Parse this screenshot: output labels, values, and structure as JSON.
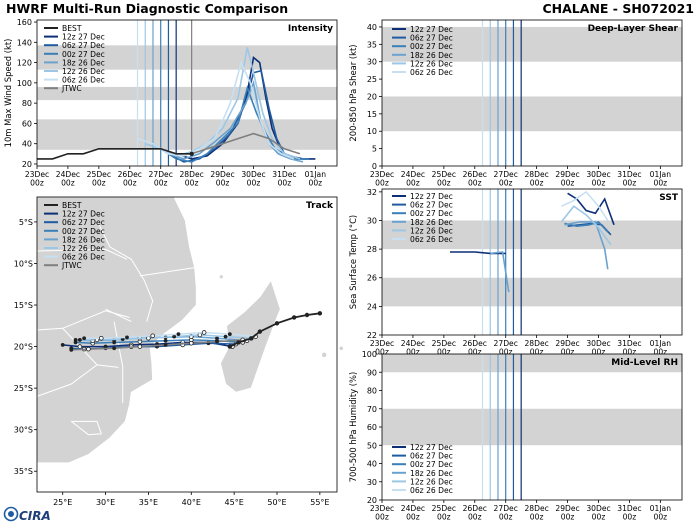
{
  "header": {
    "title_left": "HWRF Multi-Run Diagnostic Comparison",
    "title_right": "CHALANE - SH072021"
  },
  "footer": {
    "logo_text": "CIRA"
  },
  "colors": {
    "best": "#222222",
    "jtwc": "#808080",
    "band": "#d3d3d3",
    "runs": [
      "#0d2f78",
      "#1f5ba0",
      "#3a7fb7",
      "#6aa2cf",
      "#9cc7e6",
      "#c7e0f1"
    ]
  },
  "run_names": [
    "12z 27 Dec",
    "06z 27 Dec",
    "00z 27 Dec",
    "18z 26 Dec",
    "12z 26 Dec",
    "06z 26 Dec"
  ],
  "date_ticks": [
    "23Dec 00z",
    "24Dec 00z",
    "25Dec 00z",
    "26Dec 00z",
    "27Dec 00z",
    "28Dec 00z",
    "29Dec 00z",
    "30Dec 00z",
    "31Dec 00z",
    "01Jan 00z"
  ],
  "chart_data": [
    {
      "id": "intensity",
      "type": "line",
      "title": "Intensity",
      "ylabel": "10m Max Wind Speed (kt)",
      "ylim": [
        18,
        162
      ],
      "yticks": [
        20,
        40,
        60,
        80,
        100,
        120,
        140,
        160
      ],
      "bands": [
        [
          34,
          64
        ],
        [
          83,
          96
        ],
        [
          113,
          137
        ]
      ],
      "legend": [
        "BEST",
        "12z 27 Dec",
        "06z 27 Dec",
        "00z 27 Dec",
        "18z 26 Dec",
        "12z 26 Dec",
        "06z 26 Dec",
        "JTWC"
      ],
      "run_start_lines": [
        26.25,
        26.5,
        26.75,
        27.0,
        27.25,
        27.5
      ],
      "jtwc_line": 28.0,
      "best": {
        "x": [
          23.0,
          23.5,
          24.0,
          24.5,
          25.0,
          25.5,
          26.0,
          26.5,
          27.0,
          27.5,
          28.0
        ],
        "y": [
          25,
          25,
          30,
          30,
          35,
          35,
          35,
          35,
          35,
          30,
          30
        ]
      },
      "series": [
        {
          "name": "12z 27 Dec",
          "x": [
            27.5,
            28.0,
            28.5,
            29.0,
            29.5,
            29.8,
            30.0,
            30.2,
            30.4,
            30.6,
            30.8,
            31.0,
            31.3,
            31.6,
            32.0
          ],
          "y": [
            30,
            25,
            28,
            40,
            60,
            90,
            125,
            120,
            85,
            55,
            40,
            30,
            27,
            25,
            25
          ]
        },
        {
          "name": "06z 27 Dec",
          "x": [
            27.25,
            27.75,
            28.25,
            28.75,
            29.25,
            29.75,
            30.0,
            30.25,
            30.5,
            30.75,
            31.0,
            31.4,
            31.8
          ],
          "y": [
            30,
            22,
            25,
            35,
            50,
            80,
            110,
            112,
            75,
            45,
            30,
            25,
            25
          ]
        },
        {
          "name": "00z 27 Dec",
          "x": [
            27.0,
            27.5,
            28.0,
            28.5,
            29.0,
            29.5,
            29.8,
            30.1,
            30.4,
            30.7,
            31.0,
            31.4,
            31.8
          ],
          "y": [
            35,
            25,
            22,
            30,
            45,
            60,
            95,
            70,
            50,
            35,
            30,
            25,
            25
          ]
        },
        {
          "name": "18z 26 Dec",
          "x": [
            26.75,
            27.25,
            27.75,
            28.25,
            28.75,
            29.25,
            29.75,
            30.0,
            30.25,
            30.5,
            30.8,
            31.2,
            31.6
          ],
          "y": [
            40,
            30,
            25,
            30,
            42,
            55,
            80,
            100,
            60,
            40,
            30,
            25,
            22
          ]
        },
        {
          "name": "12z 26 Dec",
          "x": [
            26.5,
            27.0,
            27.5,
            28.0,
            28.5,
            29.0,
            29.5,
            29.8,
            30.0,
            30.3,
            30.6,
            31.0,
            31.5
          ],
          "y": [
            40,
            35,
            28,
            32,
            40,
            55,
            85,
            135,
            110,
            70,
            45,
            30,
            25
          ]
        },
        {
          "name": "06z 26 Dec",
          "x": [
            26.25,
            26.75,
            27.25,
            27.75,
            28.25,
            28.75,
            29.25,
            29.6,
            29.9,
            30.2,
            30.5,
            30.9,
            31.3
          ],
          "y": [
            45,
            40,
            30,
            28,
            35,
            45,
            80,
            120,
            100,
            65,
            40,
            30,
            25
          ]
        },
        {
          "name": "JTWC",
          "x": [
            28.0,
            28.5,
            29.0,
            29.5,
            30.0,
            30.5,
            31.0,
            31.5
          ],
          "y": [
            30,
            35,
            40,
            45,
            50,
            45,
            35,
            30
          ]
        }
      ]
    },
    {
      "id": "shear",
      "type": "line",
      "title": "Deep-Layer Shear",
      "ylabel": "200-850 hPa Shear (kt)",
      "ylim": [
        0,
        42
      ],
      "yticks": [
        0,
        5,
        10,
        15,
        20,
        25,
        30,
        35,
        40
      ],
      "bands": [
        [
          10,
          20
        ],
        [
          30,
          40
        ]
      ],
      "legend": [
        "12z 27 Dec",
        "06z 27 Dec",
        "00z 27 Dec",
        "18z 26 Dec",
        "12z 26 Dec",
        "06z 26 Dec"
      ],
      "run_start_lines": [
        26.25,
        26.5,
        26.75,
        27.0,
        27.25,
        27.5
      ],
      "series": []
    },
    {
      "id": "sst",
      "type": "line",
      "title": "SST",
      "ylabel": "Sea Surface Temp (°C)",
      "ylim": [
        22,
        32.2
      ],
      "yticks": [
        22,
        24,
        26,
        28,
        30,
        32
      ],
      "bands": [
        [
          24,
          26
        ],
        [
          28,
          30
        ]
      ],
      "legend": [
        "12z 27 Dec",
        "06z 27 Dec",
        "00z 27 Dec",
        "18z 26 Dec",
        "12z 26 Dec",
        "06z 26 Dec"
      ],
      "run_start_lines": [
        26.25,
        26.5,
        26.75,
        27.0,
        27.25,
        27.5
      ],
      "series": [
        {
          "name": "12z 27 Dec",
          "x": [
            25.2,
            25.6,
            26.0,
            26.5,
            27.0
          ],
          "y": [
            27.8,
            27.8,
            27.8,
            27.7,
            27.7
          ]
        },
        {
          "name": "12z 27 Dec",
          "x": [
            29.0,
            29.3,
            29.6,
            29.9,
            30.2,
            30.5
          ],
          "y": [
            31.9,
            31.5,
            30.7,
            30.5,
            31.5,
            29.7
          ]
        },
        {
          "name": "06z 27 Dec",
          "x": [
            29.0,
            29.4,
            29.8,
            30.1,
            30.4
          ],
          "y": [
            29.6,
            29.7,
            29.8,
            29.7,
            29.0
          ]
        },
        {
          "name": "00z 27 Dec",
          "x": [
            28.9,
            29.3,
            29.7,
            30.0,
            30.3
          ],
          "y": [
            29.8,
            29.6,
            29.7,
            29.9,
            29.2
          ]
        },
        {
          "name": "18z 26 Dec",
          "x": [
            26.5,
            26.9,
            27.1
          ],
          "y": [
            27.7,
            27.8,
            25.0
          ]
        },
        {
          "name": "18z 26 Dec",
          "x": [
            28.9,
            29.4,
            29.9,
            30.2,
            30.3
          ],
          "y": [
            29.7,
            29.9,
            29.9,
            28.0,
            26.6
          ]
        },
        {
          "name": "12z 26 Dec",
          "x": [
            28.8,
            29.2,
            29.6,
            30.0,
            30.4
          ],
          "y": [
            29.9,
            31.0,
            30.4,
            29.5,
            28.3
          ]
        },
        {
          "name": "06z 26 Dec",
          "x": [
            28.8,
            29.2,
            29.6,
            30.0,
            30.3
          ],
          "y": [
            31.0,
            31.4,
            32.0,
            31.0,
            30.0
          ]
        }
      ]
    },
    {
      "id": "rh",
      "type": "line",
      "title": "Mid-Level RH",
      "ylabel": "700-500 hPa Humidity (%)",
      "ylim": [
        20,
        100
      ],
      "yticks": [
        20,
        30,
        40,
        50,
        60,
        70,
        80,
        90,
        100
      ],
      "bands": [
        [
          50,
          70
        ],
        [
          90,
          100
        ]
      ],
      "legend": [
        "12z 27 Dec",
        "06z 27 Dec",
        "00z 27 Dec",
        "18z 26 Dec",
        "12z 26 Dec",
        "06z 26 Dec"
      ],
      "run_start_lines": [
        26.25,
        26.5,
        26.75,
        27.0,
        27.25,
        27.5
      ],
      "series": []
    },
    {
      "id": "track",
      "type": "scatter",
      "title": "Track",
      "xlim": [
        22,
        57
      ],
      "ylim": [
        -37.5,
        -2
      ],
      "xticks": [
        25,
        30,
        35,
        40,
        45,
        50,
        55
      ],
      "xticklabels": [
        "25°E",
        "30°E",
        "35°E",
        "40°E",
        "45°E",
        "50°E",
        "55°E"
      ],
      "yticks": [
        -5,
        -10,
        -15,
        -20,
        -25,
        -30,
        -35
      ],
      "yticklabels": [
        "5°S",
        "10°S",
        "15°S",
        "20°S",
        "25°S",
        "30°S",
        "35°S"
      ],
      "legend": [
        "BEST",
        "12z 27 Dec",
        "06z 27 Dec",
        "00z 27 Dec",
        "18z 26 Dec",
        "12z 26 Dec",
        "06z 26 Dec",
        "JTWC"
      ],
      "best": {
        "lon": [
          55.0,
          53.5,
          52.0,
          50.0,
          48.0,
          47.0,
          45.5,
          44.5
        ],
        "lat": [
          -16.0,
          -16.2,
          -16.5,
          -17.2,
          -18.2,
          -19.0,
          -19.5,
          -20.0
        ]
      },
      "series": [
        {
          "name": "12z 27 Dec",
          "lon": [
            44.8,
            42,
            39,
            36,
            33,
            30,
            27,
            25
          ],
          "lat": [
            -20.0,
            -19.5,
            -19.5,
            -19.7,
            -19.8,
            -20.0,
            -20.0,
            -19.8
          ]
        },
        {
          "name": "06z 27 Dec",
          "lon": [
            45.2,
            42,
            39,
            36,
            33,
            30,
            27.5,
            26
          ],
          "lat": [
            -19.7,
            -19.6,
            -19.8,
            -20.0,
            -20.0,
            -20.2,
            -20.3,
            -20.2
          ]
        },
        {
          "name": "00z 27 Dec",
          "lon": [
            46,
            43,
            40,
            37,
            34,
            31,
            28.5,
            26.5
          ],
          "lat": [
            -19.5,
            -19.3,
            -19.2,
            -19.3,
            -19.4,
            -19.5,
            -19.6,
            -19.5
          ]
        },
        {
          "name": "18z 26 Dec",
          "lon": [
            46.5,
            43,
            40,
            37,
            34,
            31,
            28.5,
            26.5
          ],
          "lat": [
            -19.3,
            -19.0,
            -18.8,
            -18.9,
            -19.0,
            -19.2,
            -19.3,
            -19.2
          ]
        },
        {
          "name": "12z 26 Dec",
          "lon": [
            47,
            44,
            41,
            38,
            35,
            32,
            29,
            27
          ],
          "lat": [
            -19.0,
            -18.8,
            -18.6,
            -18.8,
            -19.0,
            -19.1,
            -19.2,
            -19.2
          ]
        },
        {
          "name": "06z 26 Dec",
          "lon": [
            47.5,
            44.5,
            41.5,
            38.5,
            35.5,
            32.5,
            29.5,
            27.5
          ],
          "lat": [
            -18.8,
            -18.5,
            -18.3,
            -18.5,
            -18.7,
            -18.9,
            -19.0,
            -19.0
          ]
        },
        {
          "name": "JTWC",
          "lon": [
            46,
            43,
            40,
            37,
            34,
            31,
            28,
            26
          ],
          "lat": [
            -19.2,
            -19.4,
            -19.6,
            -19.8,
            -20.0,
            -20.2,
            -20.3,
            -20.4
          ]
        }
      ]
    }
  ]
}
